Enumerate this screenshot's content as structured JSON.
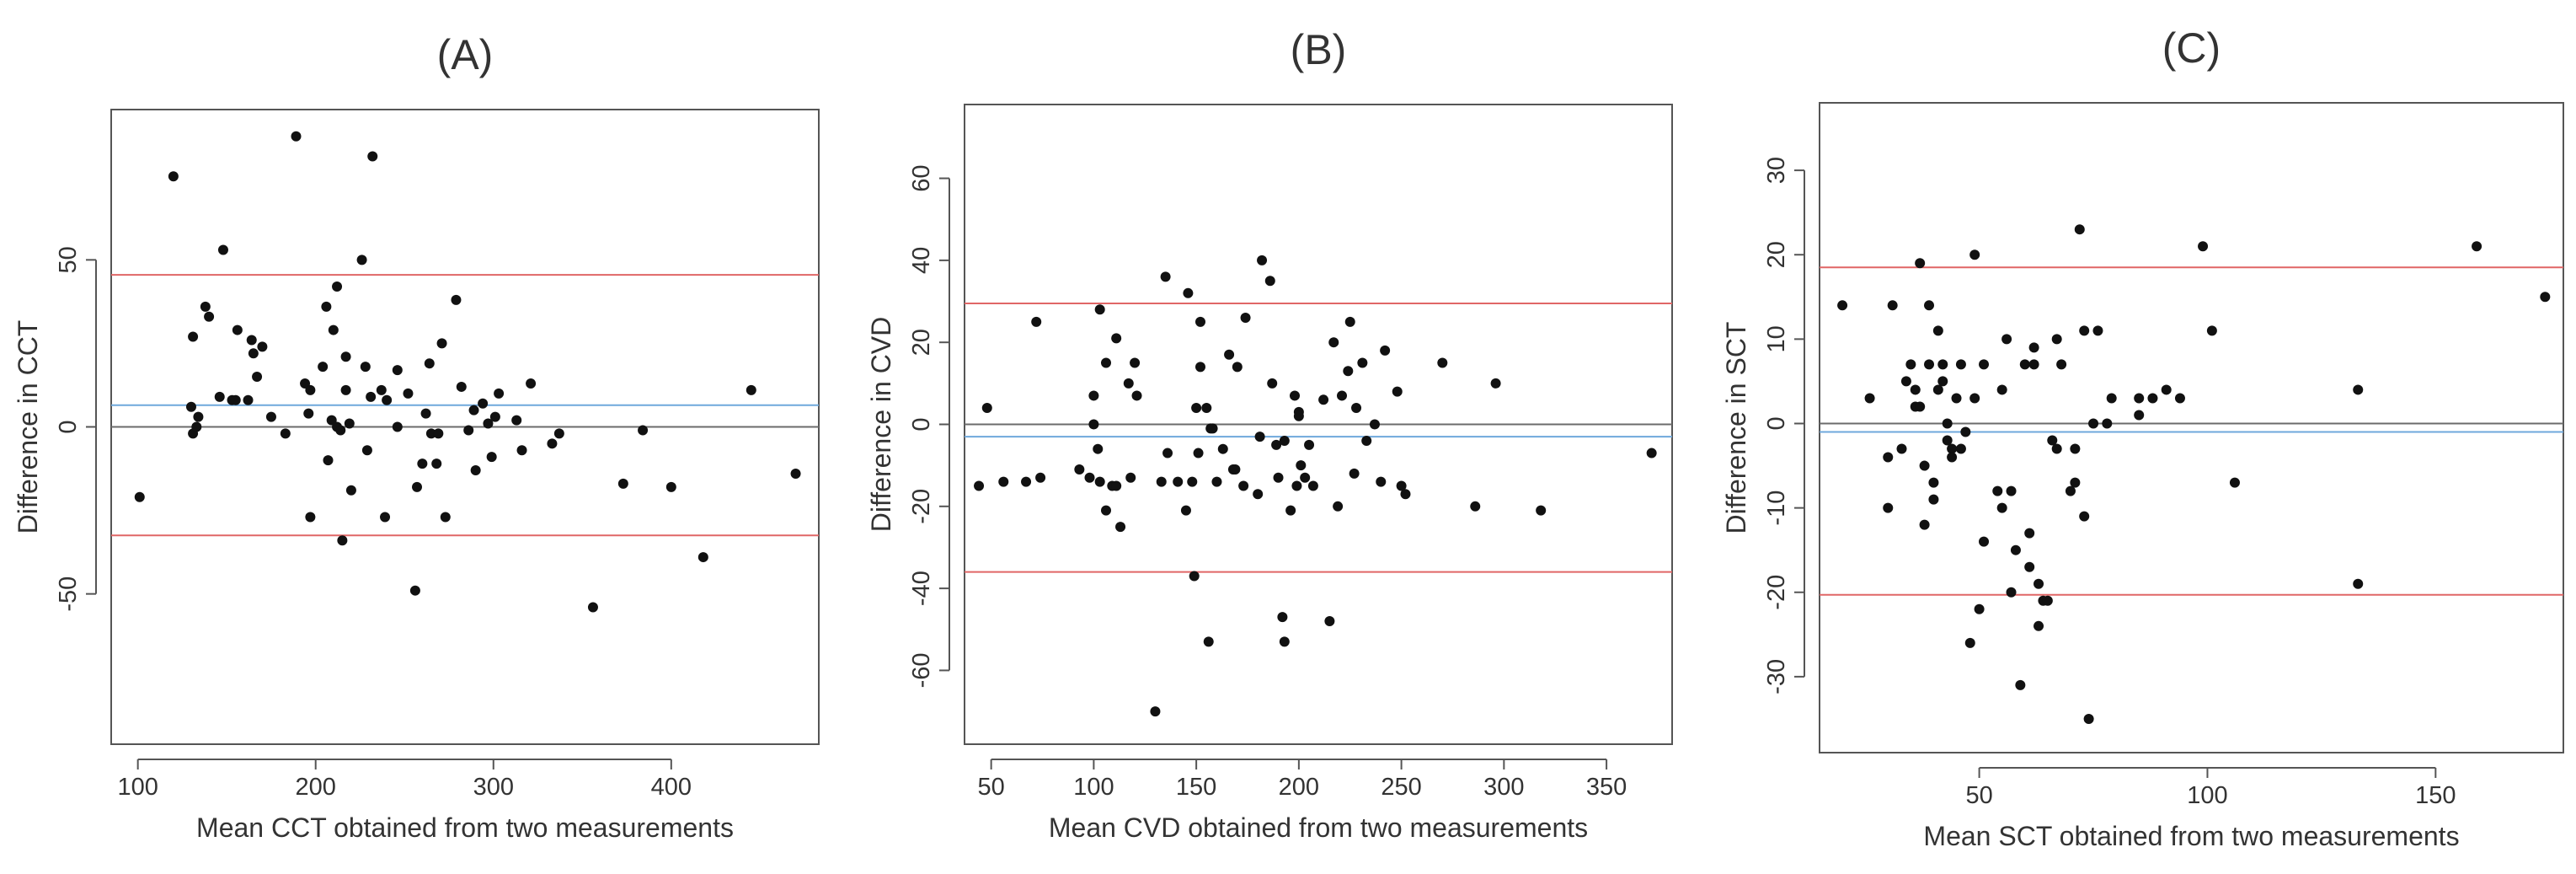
{
  "colors": {
    "point": "#111111",
    "zero_line": "#6b6b6b",
    "mean_line": "#6fa8dc",
    "limit_line": "#e06666",
    "frame": "#555555"
  },
  "chart_data": [
    {
      "type": "scatter",
      "title": "(A)",
      "xlabel": "Mean CCT obtained from two measurements",
      "ylabel": "Difference in CCT",
      "xlim": [
        85,
        483
      ],
      "ylim": [
        -95,
        95
      ],
      "xticks": [
        100,
        200,
        300,
        400
      ],
      "yticks": [
        -50,
        0,
        50
      ],
      "zero_line": 0,
      "mean_line": 6.5,
      "upper_limit": 45.5,
      "lower_limit": -32.5,
      "points": [
        [
          101,
          -21
        ],
        [
          120,
          75
        ],
        [
          131,
          27
        ],
        [
          130,
          6
        ],
        [
          131,
          -2
        ],
        [
          133,
          0
        ],
        [
          134,
          3
        ],
        [
          138,
          36
        ],
        [
          140,
          33
        ],
        [
          146,
          9
        ],
        [
          148,
          53
        ],
        [
          153,
          8
        ],
        [
          155,
          8
        ],
        [
          156,
          29
        ],
        [
          162,
          8
        ],
        [
          164,
          26
        ],
        [
          165,
          22
        ],
        [
          167,
          15
        ],
        [
          170,
          24
        ],
        [
          175,
          3
        ],
        [
          183,
          -2
        ],
        [
          189,
          87
        ],
        [
          194,
          13
        ],
        [
          196,
          4
        ],
        [
          197,
          -27
        ],
        [
          197,
          11
        ],
        [
          204,
          18
        ],
        [
          206,
          36
        ],
        [
          207,
          -10
        ],
        [
          209,
          2
        ],
        [
          210,
          29
        ],
        [
          212,
          42
        ],
        [
          212,
          0
        ],
        [
          214,
          -1
        ],
        [
          215,
          -34
        ],
        [
          217,
          11
        ],
        [
          217,
          21
        ],
        [
          219,
          1
        ],
        [
          220,
          -19
        ],
        [
          226,
          50
        ],
        [
          228,
          18
        ],
        [
          229,
          -7
        ],
        [
          231,
          9
        ],
        [
          232,
          81
        ],
        [
          237,
          11
        ],
        [
          240,
          8
        ],
        [
          239,
          -27
        ],
        [
          246,
          17
        ],
        [
          246,
          0
        ],
        [
          252,
          10
        ],
        [
          256,
          -49
        ],
        [
          257,
          -18
        ],
        [
          260,
          -11
        ],
        [
          262,
          4
        ],
        [
          264,
          19
        ],
        [
          265,
          -2
        ],
        [
          268,
          -11
        ],
        [
          269,
          -2
        ],
        [
          271,
          25
        ],
        [
          273,
          -27
        ],
        [
          279,
          38
        ],
        [
          282,
          12
        ],
        [
          286,
          -1
        ],
        [
          289,
          5
        ],
        [
          290,
          -13
        ],
        [
          294,
          7
        ],
        [
          297,
          1
        ],
        [
          299,
          -9
        ],
        [
          301,
          3
        ],
        [
          303,
          10
        ],
        [
          313,
          2
        ],
        [
          316,
          -7
        ],
        [
          321,
          13
        ],
        [
          333,
          -5
        ],
        [
          337,
          -2
        ],
        [
          356,
          -54
        ],
        [
          373,
          -17
        ],
        [
          384,
          -1
        ],
        [
          400,
          -18
        ],
        [
          418,
          -39
        ],
        [
          445,
          11
        ],
        [
          470,
          -14
        ]
      ]
    },
    {
      "type": "scatter",
      "title": "(B)",
      "xlabel": "Mean CVD obtained from two measurements",
      "ylabel": "Difference in CVD",
      "xlim": [
        37,
        382
      ],
      "ylim": [
        -78,
        78
      ],
      "xticks": [
        50,
        100,
        150,
        200,
        250,
        300,
        350
      ],
      "yticks": [
        -60,
        -40,
        -20,
        0,
        20,
        40,
        60
      ],
      "zero_line": 0,
      "mean_line": -3,
      "upper_limit": 29.5,
      "lower_limit": -36,
      "points": [
        [
          44,
          -15
        ],
        [
          48,
          4
        ],
        [
          56,
          -14
        ],
        [
          67,
          -14
        ],
        [
          72,
          25
        ],
        [
          74,
          -13
        ],
        [
          93,
          -11
        ],
        [
          98,
          -13
        ],
        [
          100,
          7
        ],
        [
          100,
          0
        ],
        [
          102,
          -6
        ],
        [
          103,
          28
        ],
        [
          103,
          -14
        ],
        [
          106,
          15
        ],
        [
          106,
          -21
        ],
        [
          109,
          -15
        ],
        [
          111,
          21
        ],
        [
          111,
          -15
        ],
        [
          113,
          -25
        ],
        [
          117,
          10
        ],
        [
          118,
          -13
        ],
        [
          120,
          15
        ],
        [
          121,
          7
        ],
        [
          130,
          -70
        ],
        [
          133,
          -14
        ],
        [
          135,
          36
        ],
        [
          136,
          -7
        ],
        [
          141,
          -14
        ],
        [
          145,
          -21
        ],
        [
          146,
          32
        ],
        [
          148,
          -14
        ],
        [
          149,
          -37
        ],
        [
          150,
          4
        ],
        [
          151,
          -7
        ],
        [
          152,
          14
        ],
        [
          152,
          25
        ],
        [
          155,
          4
        ],
        [
          156,
          -53
        ],
        [
          157,
          -1
        ],
        [
          158,
          -1
        ],
        [
          160,
          -14
        ],
        [
          163,
          -6
        ],
        [
          166,
          17
        ],
        [
          168,
          -11
        ],
        [
          169,
          -11
        ],
        [
          170,
          14
        ],
        [
          173,
          -15
        ],
        [
          174,
          26
        ],
        [
          180,
          -17
        ],
        [
          181,
          -3
        ],
        [
          182,
          40
        ],
        [
          186,
          35
        ],
        [
          187,
          10
        ],
        [
          189,
          -5
        ],
        [
          190,
          -13
        ],
        [
          192,
          -47
        ],
        [
          193,
          -53
        ],
        [
          193,
          -4
        ],
        [
          196,
          -21
        ],
        [
          198,
          7
        ],
        [
          199,
          -15
        ],
        [
          200,
          3
        ],
        [
          200,
          2
        ],
        [
          201,
          -10
        ],
        [
          203,
          -13
        ],
        [
          205,
          -5
        ],
        [
          207,
          -15
        ],
        [
          212,
          6
        ],
        [
          215,
          -48
        ],
        [
          217,
          20
        ],
        [
          219,
          -20
        ],
        [
          221,
          7
        ],
        [
          224,
          13
        ],
        [
          225,
          25
        ],
        [
          227,
          -12
        ],
        [
          228,
          4
        ],
        [
          231,
          15
        ],
        [
          233,
          -4
        ],
        [
          237,
          0
        ],
        [
          240,
          -14
        ],
        [
          242,
          18
        ],
        [
          248,
          8
        ],
        [
          250,
          -15
        ],
        [
          252,
          -17
        ],
        [
          270,
          15
        ],
        [
          286,
          -20
        ],
        [
          296,
          10
        ],
        [
          318,
          -21
        ],
        [
          372,
          -7
        ]
      ]
    },
    {
      "type": "scatter",
      "title": "(C)",
      "xlabel": "Mean SCT obtained from two measurements",
      "ylabel": "Difference in SCT",
      "xlim": [
        15,
        178
      ],
      "ylim": [
        -39,
        38
      ],
      "xticks": [
        50,
        100,
        150
      ],
      "yticks": [
        -30,
        -20,
        -10,
        0,
        10,
        20,
        30
      ],
      "zero_line": 0,
      "mean_line": -1,
      "upper_limit": 18.5,
      "lower_limit": -20.3,
      "points": [
        [
          20,
          14
        ],
        [
          26,
          3
        ],
        [
          30,
          -10
        ],
        [
          30,
          -4
        ],
        [
          31,
          14
        ],
        [
          33,
          -3
        ],
        [
          34,
          5
        ],
        [
          35,
          7
        ],
        [
          36,
          2
        ],
        [
          36,
          4
        ],
        [
          37,
          19
        ],
        [
          37,
          2
        ],
        [
          38,
          -5
        ],
        [
          38,
          -12
        ],
        [
          39,
          14
        ],
        [
          39,
          7
        ],
        [
          40,
          -9
        ],
        [
          40,
          -7
        ],
        [
          41,
          4
        ],
        [
          41,
          11
        ],
        [
          42,
          5
        ],
        [
          42,
          7
        ],
        [
          43,
          0
        ],
        [
          43,
          -2
        ],
        [
          44,
          -3
        ],
        [
          44,
          -4
        ],
        [
          45,
          3
        ],
        [
          46,
          -3
        ],
        [
          46,
          7
        ],
        [
          47,
          -1
        ],
        [
          48,
          -26
        ],
        [
          49,
          3
        ],
        [
          49,
          20
        ],
        [
          50,
          -22
        ],
        [
          51,
          -14
        ],
        [
          51,
          7
        ],
        [
          54,
          -8
        ],
        [
          55,
          4
        ],
        [
          55,
          -10
        ],
        [
          56,
          10
        ],
        [
          57,
          -20
        ],
        [
          57,
          -8
        ],
        [
          58,
          -15
        ],
        [
          59,
          -31
        ],
        [
          60,
          7
        ],
        [
          61,
          -13
        ],
        [
          61,
          -17
        ],
        [
          62,
          9
        ],
        [
          62,
          7
        ],
        [
          63,
          -19
        ],
        [
          63,
          -24
        ],
        [
          64,
          -21
        ],
        [
          65,
          -21
        ],
        [
          66,
          -2
        ],
        [
          67,
          -3
        ],
        [
          67,
          10
        ],
        [
          68,
          7
        ],
        [
          70,
          -8
        ],
        [
          71,
          -7
        ],
        [
          71,
          -3
        ],
        [
          72,
          23
        ],
        [
          73,
          11
        ],
        [
          73,
          -11
        ],
        [
          74,
          -35
        ],
        [
          75,
          0
        ],
        [
          76,
          11
        ],
        [
          78,
          0
        ],
        [
          79,
          3
        ],
        [
          85,
          1
        ],
        [
          85,
          3
        ],
        [
          88,
          3
        ],
        [
          91,
          4
        ],
        [
          94,
          3
        ],
        [
          99,
          21
        ],
        [
          101,
          11
        ],
        [
          106,
          -7
        ],
        [
          133,
          4
        ],
        [
          133,
          -19
        ],
        [
          159,
          21
        ],
        [
          174,
          15
        ]
      ]
    }
  ]
}
